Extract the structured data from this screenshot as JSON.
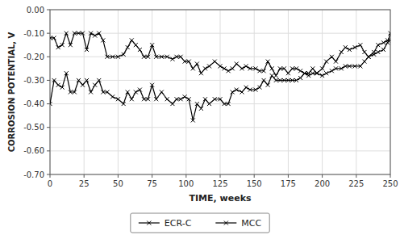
{
  "chart_data": {
    "type": "line",
    "xlabel": "TIME, weeks",
    "ylabel": "CORROSION POTENTIAL, V",
    "x": [
      0,
      3,
      6,
      9,
      12,
      15,
      18,
      21,
      24,
      27,
      30,
      33,
      36,
      39,
      42,
      46,
      50,
      54,
      57,
      60,
      63,
      66,
      69,
      72,
      75,
      78,
      82,
      86,
      90,
      93,
      96,
      99,
      102,
      105,
      108,
      111,
      114,
      117,
      121,
      125,
      128,
      131,
      134,
      137,
      141,
      144,
      147,
      151,
      154,
      157,
      160,
      163,
      166,
      169,
      172,
      175,
      178,
      181,
      184,
      187,
      190,
      193,
      196,
      200,
      203,
      207,
      210,
      214,
      217,
      220,
      224,
      228,
      231,
      234,
      238,
      241,
      245,
      248,
      250
    ],
    "series": [
      {
        "name": "ECR-C",
        "color": "#000000",
        "marker": "x",
        "values": [
          -0.12,
          -0.12,
          -0.16,
          -0.15,
          -0.1,
          -0.15,
          -0.1,
          -0.1,
          -0.1,
          -0.17,
          -0.1,
          -0.11,
          -0.1,
          -0.13,
          -0.2,
          -0.2,
          -0.2,
          -0.19,
          -0.16,
          -0.13,
          -0.15,
          -0.17,
          -0.2,
          -0.2,
          -0.15,
          -0.2,
          -0.2,
          -0.2,
          -0.21,
          -0.2,
          -0.2,
          -0.22,
          -0.22,
          -0.25,
          -0.23,
          -0.27,
          -0.25,
          -0.24,
          -0.22,
          -0.24,
          -0.25,
          -0.26,
          -0.25,
          -0.23,
          -0.25,
          -0.24,
          -0.25,
          -0.25,
          -0.26,
          -0.26,
          -0.22,
          -0.25,
          -0.28,
          -0.25,
          -0.25,
          -0.27,
          -0.25,
          -0.25,
          -0.26,
          -0.27,
          -0.27,
          -0.25,
          -0.27,
          -0.25,
          -0.22,
          -0.2,
          -0.22,
          -0.18,
          -0.16,
          -0.17,
          -0.16,
          -0.15,
          -0.18,
          -0.2,
          -0.18,
          -0.15,
          -0.14,
          -0.13,
          -0.13
        ]
      },
      {
        "name": "MCC",
        "color": "#000000",
        "marker": "x",
        "values": [
          -0.4,
          -0.3,
          -0.32,
          -0.33,
          -0.27,
          -0.35,
          -0.35,
          -0.3,
          -0.32,
          -0.3,
          -0.35,
          -0.32,
          -0.3,
          -0.35,
          -0.35,
          -0.37,
          -0.38,
          -0.4,
          -0.35,
          -0.38,
          -0.35,
          -0.34,
          -0.38,
          -0.38,
          -0.32,
          -0.38,
          -0.35,
          -0.38,
          -0.4,
          -0.38,
          -0.38,
          -0.37,
          -0.38,
          -0.47,
          -0.4,
          -0.42,
          -0.38,
          -0.4,
          -0.38,
          -0.38,
          -0.4,
          -0.4,
          -0.35,
          -0.34,
          -0.35,
          -0.33,
          -0.34,
          -0.34,
          -0.33,
          -0.3,
          -0.32,
          -0.28,
          -0.3,
          -0.3,
          -0.3,
          -0.3,
          -0.3,
          -0.3,
          -0.29,
          -0.27,
          -0.28,
          -0.27,
          -0.27,
          -0.28,
          -0.27,
          -0.26,
          -0.25,
          -0.25,
          -0.24,
          -0.24,
          -0.24,
          -0.24,
          -0.22,
          -0.2,
          -0.19,
          -0.18,
          -0.17,
          -0.14,
          -0.1
        ]
      }
    ],
    "xlim": [
      0,
      250
    ],
    "ylim": [
      -0.7,
      0.0
    ],
    "xticks": [
      0,
      25,
      50,
      75,
      100,
      125,
      150,
      175,
      200,
      225,
      250
    ],
    "yticks": [
      {
        "value": 0.0,
        "label": "0.00"
      },
      {
        "value": -0.1,
        "label": "-0.10"
      },
      {
        "value": -0.2,
        "label": "-0.20"
      },
      {
        "value": -0.3,
        "label": "-0.30"
      },
      {
        "value": -0.4,
        "label": "-0.40"
      },
      {
        "value": -0.5,
        "label": "-0.50"
      },
      {
        "value": -0.6,
        "label": "-0.60"
      },
      {
        "value": -0.7,
        "label": "-0.70"
      }
    ],
    "grid": true,
    "legend": "bottom"
  }
}
